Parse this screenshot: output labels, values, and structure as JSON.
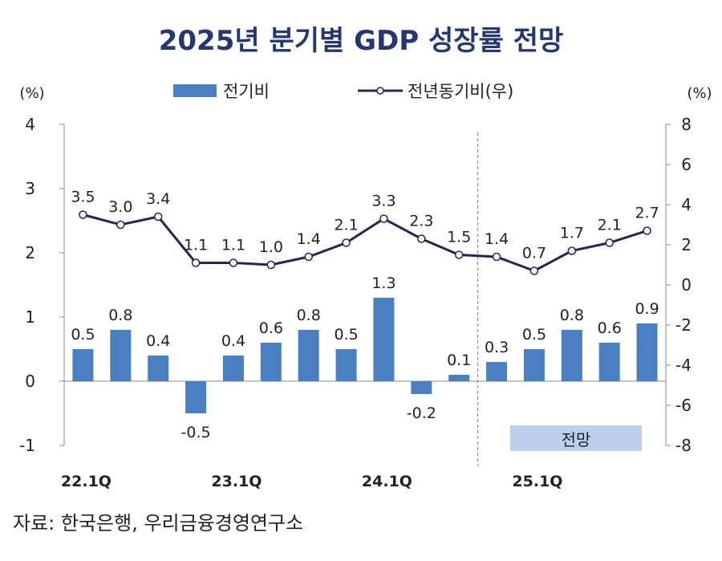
{
  "chart_data": {
    "type": "bar+line",
    "title": "2025년 분기별 GDP 성장률 전망",
    "left_unit": "(%)",
    "right_unit": "(%)",
    "left_ylim": [
      -1,
      4
    ],
    "left_ticks": [
      "4",
      "3",
      "2",
      "1",
      "0",
      "-1"
    ],
    "right_ylim": [
      -8,
      8
    ],
    "right_ticks": [
      "8",
      "6",
      "4",
      "2",
      "0",
      "-2",
      "-4",
      "-6",
      "-8"
    ],
    "categories": [
      "22.1Q",
      "22.2Q",
      "22.3Q",
      "22.4Q",
      "23.1Q",
      "23.2Q",
      "23.3Q",
      "23.4Q",
      "24.1Q",
      "24.2Q",
      "24.3Q",
      "24.4Q",
      "25.1Q",
      "25.2Q",
      "25.3Q",
      "25.4Q"
    ],
    "x_tick_labels": [
      "22.1Q",
      "23.1Q",
      "24.1Q",
      "25.1Q"
    ],
    "series": [
      {
        "name": "전기비",
        "type": "bar",
        "axis": "left",
        "color": "#4a7fc1",
        "values": [
          0.5,
          0.8,
          0.4,
          -0.5,
          0.4,
          0.6,
          0.8,
          0.5,
          1.3,
          -0.2,
          0.1,
          0.3,
          0.5,
          0.8,
          0.6,
          0.9
        ]
      },
      {
        "name": "전년동기비(우)",
        "type": "line",
        "axis": "right",
        "color": "#1f2a4d",
        "values": [
          3.5,
          3.0,
          3.4,
          1.1,
          1.1,
          1.0,
          1.4,
          2.1,
          3.3,
          2.3,
          1.5,
          1.4,
          0.7,
          1.7,
          2.1,
          2.7
        ]
      }
    ],
    "forecast_label": "전망",
    "forecast_start_index": 11,
    "legend_position": "top"
  },
  "source": "자료: 한국은행, 우리금융경영연구소"
}
